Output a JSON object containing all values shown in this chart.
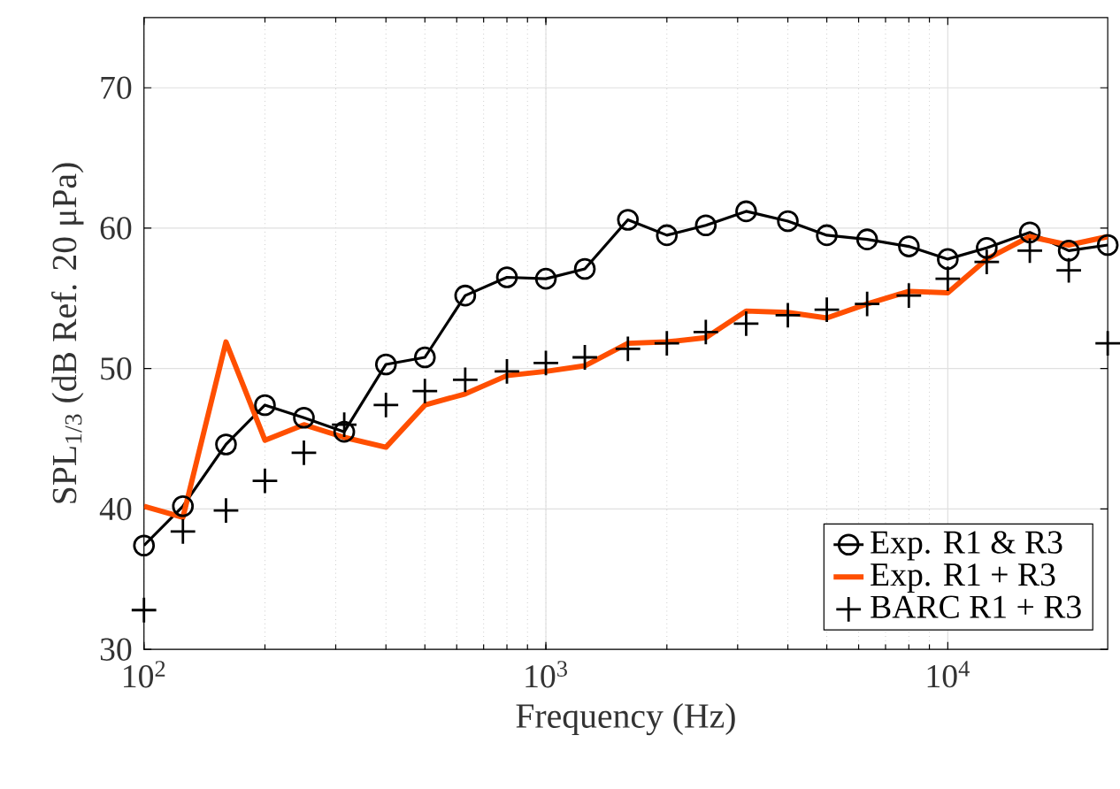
{
  "chart_data": {
    "type": "line",
    "xlabel": "Frequency (Hz)",
    "ylabel": "SPL$_{1/3}$ (dB Ref. 20 μPa)",
    "log": "x",
    "xlim": [
      100,
      25000
    ],
    "ylim": [
      30,
      75
    ],
    "xticks": [
      {
        "value": 100,
        "label": "10$^{2}$"
      },
      {
        "value": 1000,
        "label": "10$^{3}$"
      },
      {
        "value": 10000,
        "label": "10$^{4}$"
      }
    ],
    "yticks": [
      30,
      40,
      50,
      60,
      70
    ],
    "grid": true,
    "legend": "bottom right",
    "x": [
      100,
      125,
      160,
      200,
      250,
      315,
      400,
      500,
      630,
      800,
      1000,
      1250,
      1600,
      2000,
      2500,
      3150,
      4000,
      5000,
      6300,
      8000,
      10000,
      12500,
      16000,
      20000,
      25000
    ],
    "series": [
      {
        "name": "Exp. R1 & R3",
        "color": "#000000",
        "marker": "circle",
        "values": [
          37.4,
          40.2,
          44.6,
          47.4,
          46.5,
          45.5,
          50.3,
          50.8,
          55.2,
          56.5,
          56.4,
          57.1,
          60.6,
          59.5,
          60.2,
          61.2,
          60.5,
          59.5,
          59.2,
          58.7,
          57.8,
          58.6,
          59.7,
          58.4,
          58.8
        ]
      },
      {
        "name": "Exp. R1 + R3",
        "color": "#ff4f00",
        "marker": "none",
        "values": [
          40.2,
          39.4,
          51.9,
          44.9,
          46.0,
          45.1,
          44.4,
          47.4,
          48.2,
          49.5,
          49.8,
          50.2,
          51.8,
          51.9,
          52.2,
          54.1,
          54.0,
          53.6,
          54.6,
          55.5,
          55.4,
          57.8,
          59.4,
          58.8,
          59.4
        ]
      },
      {
        "name": "BARC R1 + R3",
        "type": "scatter",
        "color": "#000000",
        "marker": "cross",
        "values": [
          32.8,
          38.4,
          39.9,
          42.0,
          44.0,
          46.0,
          47.4,
          48.4,
          49.2,
          49.8,
          50.4,
          50.8,
          51.4,
          51.8,
          52.6,
          53.2,
          53.8,
          54.2,
          54.6,
          55.2,
          56.4,
          57.6,
          58.4,
          57.0,
          51.8
        ]
      }
    ]
  }
}
